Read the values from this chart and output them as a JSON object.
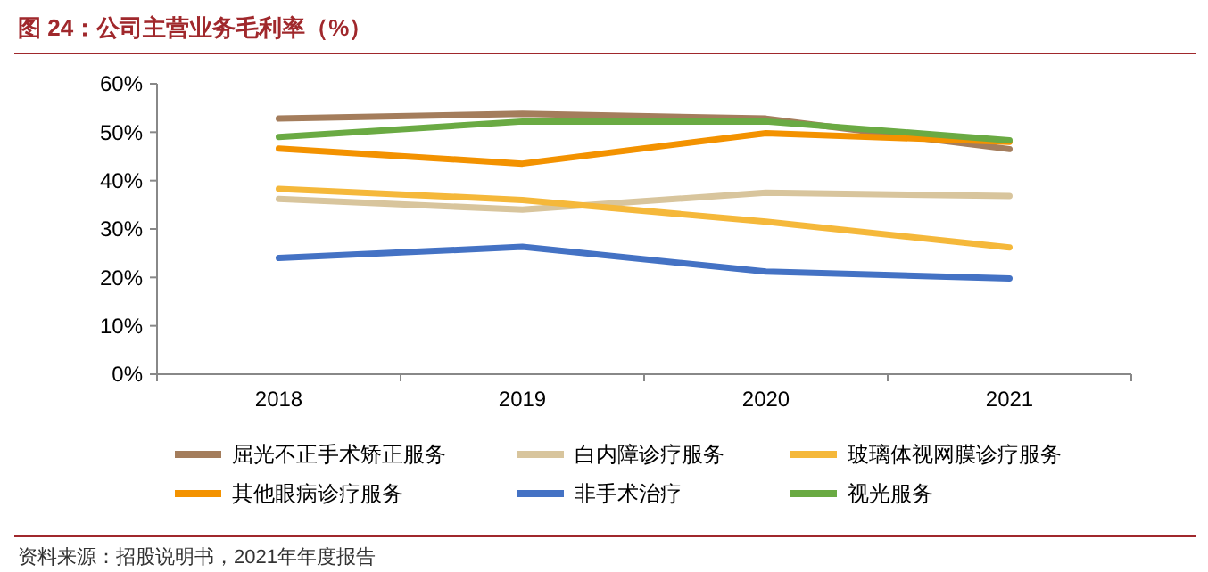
{
  "chart_data": {
    "type": "line",
    "title": "图 24：公司主营业务毛利率（%）",
    "categories": [
      "2018",
      "2019",
      "2020",
      "2021"
    ],
    "series": [
      {
        "name": "屈光不正手术矫正服务",
        "color": "#a47d5c",
        "values": [
          52.8,
          53.8,
          52.8,
          46.5
        ]
      },
      {
        "name": "白内障诊疗服务",
        "color": "#d8c59d",
        "values": [
          36.2,
          34.0,
          37.5,
          36.8
        ]
      },
      {
        "name": "玻璃体视网膜诊疗服务",
        "color": "#f5b83a",
        "values": [
          38.3,
          36.0,
          31.5,
          26.2
        ]
      },
      {
        "name": "其他眼病诊疗服务",
        "color": "#f39200",
        "values": [
          46.6,
          43.5,
          49.8,
          48.0
        ]
      },
      {
        "name": "非手术治疗",
        "color": "#4472c4",
        "values": [
          24.0,
          26.3,
          21.2,
          19.8
        ]
      },
      {
        "name": "视光服务",
        "color": "#6aaa43",
        "values": [
          49.0,
          52.2,
          52.2,
          48.3
        ]
      }
    ],
    "ylim": [
      0,
      60
    ],
    "yticks": [
      {
        "value": 0,
        "label": "0%"
      },
      {
        "value": 10,
        "label": "10%"
      },
      {
        "value": 20,
        "label": "20%"
      },
      {
        "value": 30,
        "label": "30%"
      },
      {
        "value": 40,
        "label": "40%"
      },
      {
        "value": 50,
        "label": "50%"
      },
      {
        "value": 60,
        "label": "60%"
      }
    ],
    "grid": false,
    "legend": "bottom",
    "marker": "none",
    "line_style": "solid",
    "annotations": [
      "资料来源：招股说明书，2021年年度报告"
    ]
  }
}
